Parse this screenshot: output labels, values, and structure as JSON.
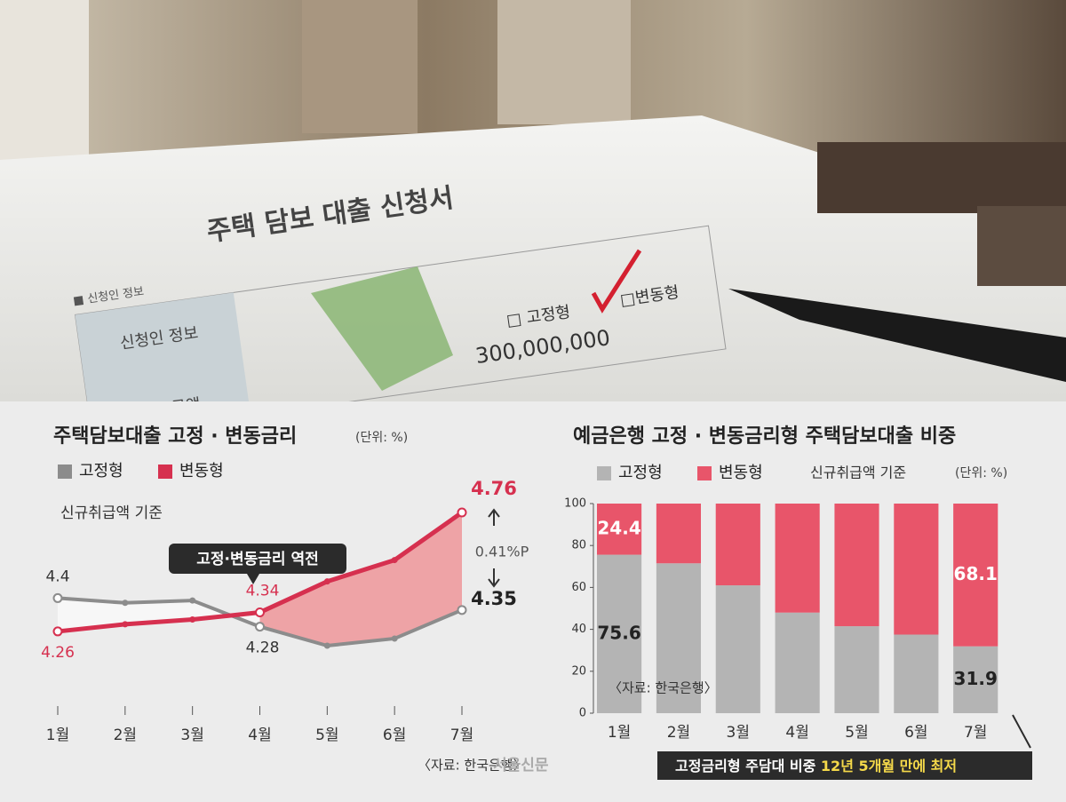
{
  "photo": {
    "form_title": "주택 담보 대출 신청서",
    "section": "■ 신청인 정보",
    "row_label": "신청인 정보",
    "amount_label": "대출 금액",
    "option_fixed": "□ 고정형",
    "option_variable": "□변동형",
    "amount": "300,000,000"
  },
  "logo": "서울신문",
  "chart_data": [
    {
      "type": "line",
      "title": "주택담보대출 고정 · 변동금리",
      "unit": "(단위: %)",
      "subtitle": "신규취급액 기준",
      "categories": [
        "1월",
        "2월",
        "3월",
        "4월",
        "5월",
        "6월",
        "7월"
      ],
      "series": [
        {
          "name": "고정형",
          "color": "#8c8c8c",
          "values": [
            4.4,
            4.38,
            4.39,
            4.28,
            4.2,
            4.23,
            4.35
          ],
          "labeled_points": [
            0,
            3,
            6
          ]
        },
        {
          "name": "변동형",
          "color": "#d6304f",
          "values": [
            4.26,
            4.29,
            4.31,
            4.34,
            4.47,
            4.56,
            4.76
          ],
          "labeled_points": [
            0,
            3,
            6
          ]
        }
      ],
      "annotations": {
        "crossover": "고정·변동금리 역전",
        "gap": "0.41%P"
      },
      "source": "〈자료: 한국은행〉"
    },
    {
      "type": "bar",
      "stacked": true,
      "title": "예금은행 고정 · 변동금리형 주택담보대출 비중",
      "unit": "(단위: %)",
      "subtitle": "신규취급액 기준",
      "categories": [
        "1월",
        "2월",
        "3월",
        "4월",
        "5월",
        "6월",
        "7월"
      ],
      "series": [
        {
          "name": "고정형",
          "color": "#b4b4b4",
          "values": [
            75.6,
            71.5,
            61,
            48,
            41.5,
            37.5,
            31.9
          ],
          "labeled_points": [
            0,
            6
          ]
        },
        {
          "name": "변동형",
          "color": "#e8556a",
          "values": [
            24.4,
            28.5,
            39,
            52,
            58.5,
            62.5,
            68.1
          ],
          "labeled_points": [
            0,
            6
          ]
        }
      ],
      "ylim": [
        0,
        100
      ],
      "yticks": [
        0,
        20,
        40,
        60,
        80,
        100
      ],
      "source": "〈자료: 한국은행〉",
      "note": {
        "text": "고정금리형 주담대 비중 ",
        "highlight": "12년 5개월 만에 최저"
      }
    }
  ]
}
